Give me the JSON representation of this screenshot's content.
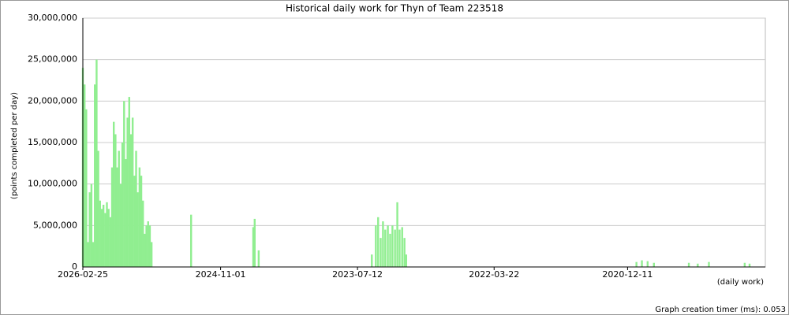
{
  "chart_data": {
    "type": "bar",
    "title": "Historical daily work for Thyn of Team 223518",
    "y_label": "(points completed per day)",
    "x_label": "(daily work)",
    "footer": "Graph creation timer (ms): 0.053",
    "color": "#90ee90",
    "grid": true,
    "x": [
      "2026-02-25",
      "2026-02-19",
      "2026-02-13",
      "2026-02-07",
      "2026-02-01",
      "2026-01-26",
      "2026-01-20",
      "2026-01-14",
      "2026-01-08",
      "2026-01-02",
      "2025-12-27",
      "2025-12-21",
      "2025-12-15",
      "2025-12-09",
      "2025-12-03",
      "2025-11-27",
      "2025-11-21",
      "2025-11-15",
      "2025-11-09",
      "2025-11-03",
      "2025-10-28",
      "2025-10-22",
      "2025-10-16",
      "2025-10-10",
      "2025-10-04",
      "2025-09-28",
      "2025-09-22",
      "2025-09-16",
      "2025-09-10",
      "2025-09-04",
      "2025-08-29",
      "2025-08-23",
      "2025-08-17",
      "2025-08-11",
      "2025-08-05",
      "2025-07-30",
      "2025-07-24",
      "2025-07-18",
      "2025-07-12",
      "2025-07-06",
      "2025-06-30",
      "2025-02-12",
      "2024-07-10",
      "2024-07-05",
      "2024-06-21",
      "2023-05-23",
      "2023-05-09",
      "2023-05-01",
      "2023-04-22",
      "2023-04-14",
      "2023-04-06",
      "2023-03-28",
      "2023-03-20",
      "2023-03-12",
      "2023-03-03",
      "2023-02-23",
      "2023-02-15",
      "2023-02-06",
      "2023-01-29",
      "2023-01-23",
      "2020-11-10",
      "2020-10-22",
      "2020-10-02",
      "2020-09-10",
      "2020-05-11",
      "2020-04-10",
      "2020-03-02",
      "2019-10-29",
      "2019-10-12"
    ],
    "values": [
      24000000,
      22000000,
      19000000,
      3000000,
      9000000,
      10000000,
      3000000,
      22000000,
      25000000,
      14000000,
      8000000,
      7000000,
      7500000,
      6500000,
      7800000,
      7000000,
      6000000,
      12000000,
      17500000,
      16000000,
      12000000,
      14000000,
      10000000,
      15000000,
      20000000,
      13000000,
      18000000,
      20500000,
      16000000,
      18000000,
      11000000,
      14000000,
      9000000,
      12000000,
      11000000,
      8000000,
      4000000,
      5000000,
      5500000,
      5000000,
      3000000,
      6300000,
      4800000,
      5800000,
      2000000,
      1500000,
      5000000,
      6000000,
      3500000,
      5500000,
      4500000,
      5000000,
      4000000,
      5000000,
      4500000,
      7800000,
      4500000,
      4800000,
      3500000,
      1500000,
      600000,
      800000,
      700000,
      500000,
      500000,
      400000,
      600000,
      500000,
      400000
    ],
    "xlim": [
      "2026-02-25",
      "2019-08-18"
    ],
    "xticks": [
      "2026-02-25",
      "2024-11-01",
      "2023-07-12",
      "2022-03-22",
      "2020-12-11"
    ],
    "ylim": [
      0,
      30000000
    ],
    "yticks": [
      0,
      {
        "value": 5000000,
        "label": "5,000,000"
      },
      {
        "value": 10000000,
        "label": "10,000,000"
      },
      {
        "value": 15000000,
        "label": "15,000,000"
      },
      {
        "value": 20000000,
        "label": "20,000,000"
      },
      {
        "value": 25000000,
        "label": "25,000,000"
      },
      {
        "value": 30000000,
        "label": "30,000,000"
      }
    ]
  }
}
